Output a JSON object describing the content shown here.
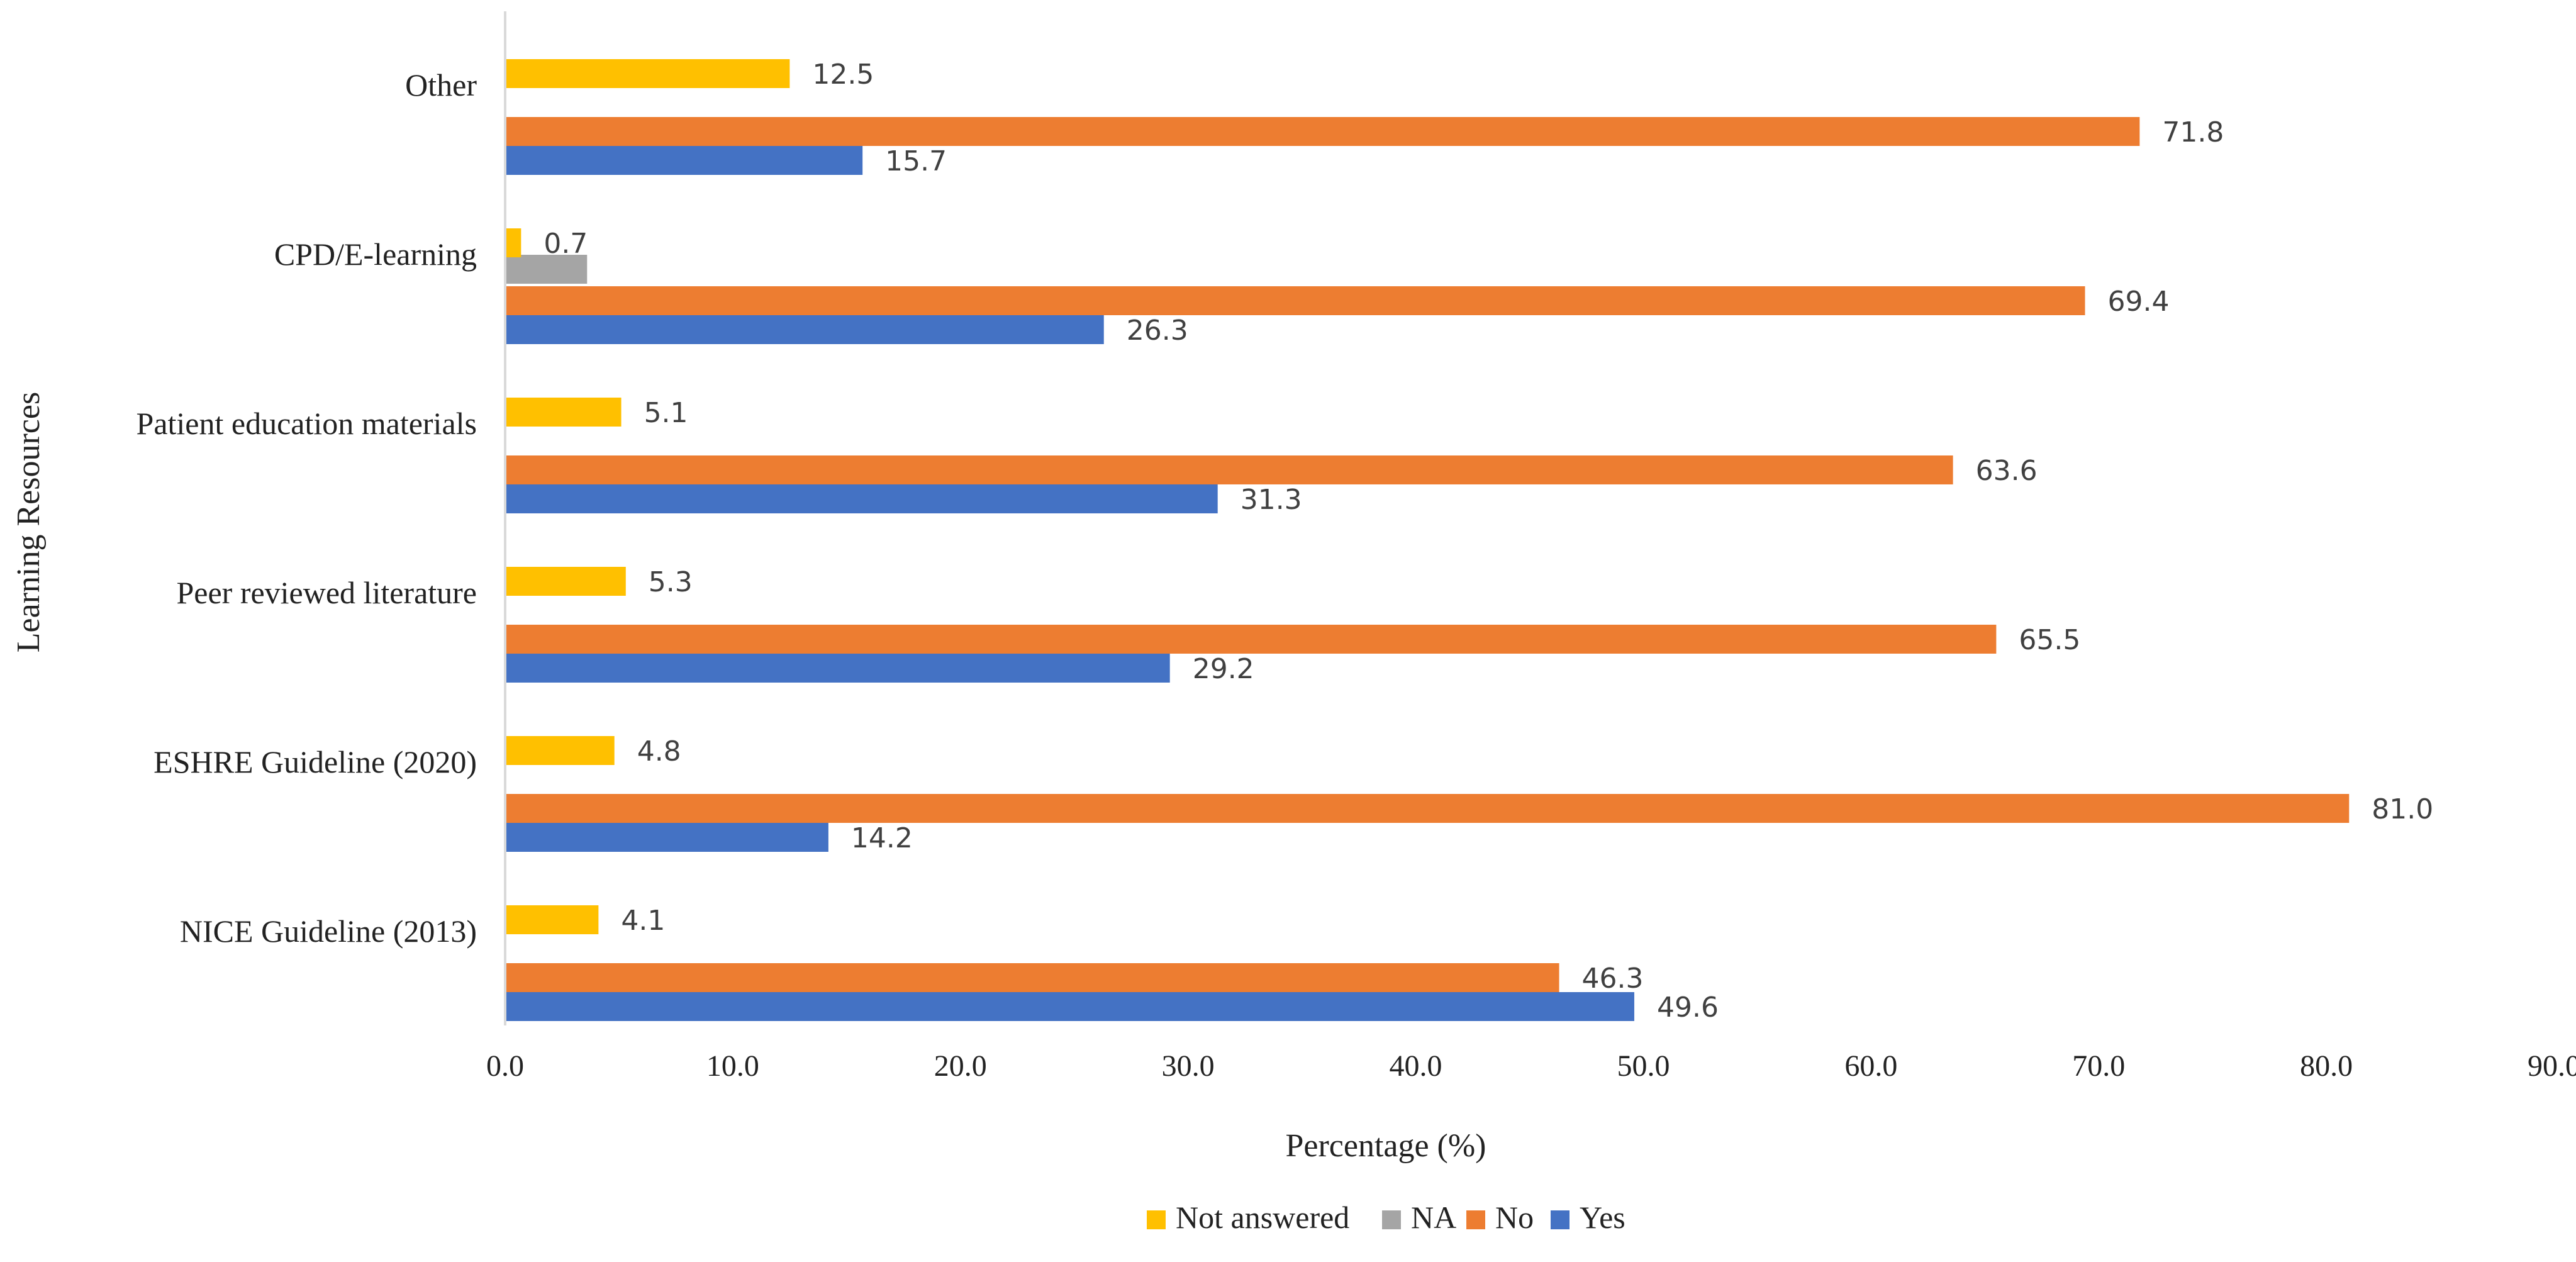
{
  "chart_data": {
    "type": "bar",
    "orientation": "horizontal",
    "title": "",
    "xlabel": "Percentage (%)",
    "ylabel": "Learning Resources",
    "xlim": [
      0,
      90
    ],
    "xticks": [
      0,
      10,
      20,
      30,
      40,
      50,
      60,
      70,
      80,
      90
    ],
    "xtick_labels": [
      "0.0",
      "10.0",
      "20.0",
      "30.0",
      "40.0",
      "50.0",
      "60.0",
      "70.0",
      "80.0",
      "90.0"
    ],
    "grid": false,
    "legend_position": "bottom",
    "categories": [
      "NICE Guideline (2013)",
      "ESHRE Guideline (2020)",
      "Peer reviewed literature",
      "Patient education materials",
      "CPD/E-learning",
      "Other"
    ],
    "series": [
      {
        "name": "Yes",
        "color": "#4472C4",
        "values": [
          49.6,
          14.2,
          29.2,
          31.3,
          26.3,
          15.7
        ]
      },
      {
        "name": "No",
        "color": "#ED7D31",
        "values": [
          46.3,
          81.0,
          65.5,
          63.6,
          69.4,
          71.8
        ]
      },
      {
        "name": "NA",
        "color": "#A5A5A5",
        "values": [
          null,
          null,
          null,
          null,
          3.6,
          null
        ]
      },
      {
        "name": "Not answered",
        "color": "#FFC000",
        "values": [
          4.1,
          4.8,
          5.3,
          5.1,
          0.7,
          12.5
        ]
      }
    ],
    "data_labels": {
      "Yes": [
        "49.6",
        "14.2",
        "29.2",
        "31.3",
        "26.3",
        "15.7"
      ],
      "No": [
        "46.3",
        "81.0",
        "65.5",
        "63.6",
        "69.4",
        "71.8"
      ],
      "NA": [
        null,
        null,
        null,
        null,
        null,
        null
      ],
      "Not answered": [
        "4.1",
        "4.8",
        "5.3",
        "5.1",
        "0.7",
        "12.5"
      ]
    },
    "legend": [
      {
        "name": "Not answered",
        "color": "#FFC000"
      },
      {
        "name": "NA",
        "color": "#A5A5A5"
      },
      {
        "name": "No",
        "color": "#ED7D31"
      },
      {
        "name": "Yes",
        "color": "#4472C4"
      }
    ]
  }
}
